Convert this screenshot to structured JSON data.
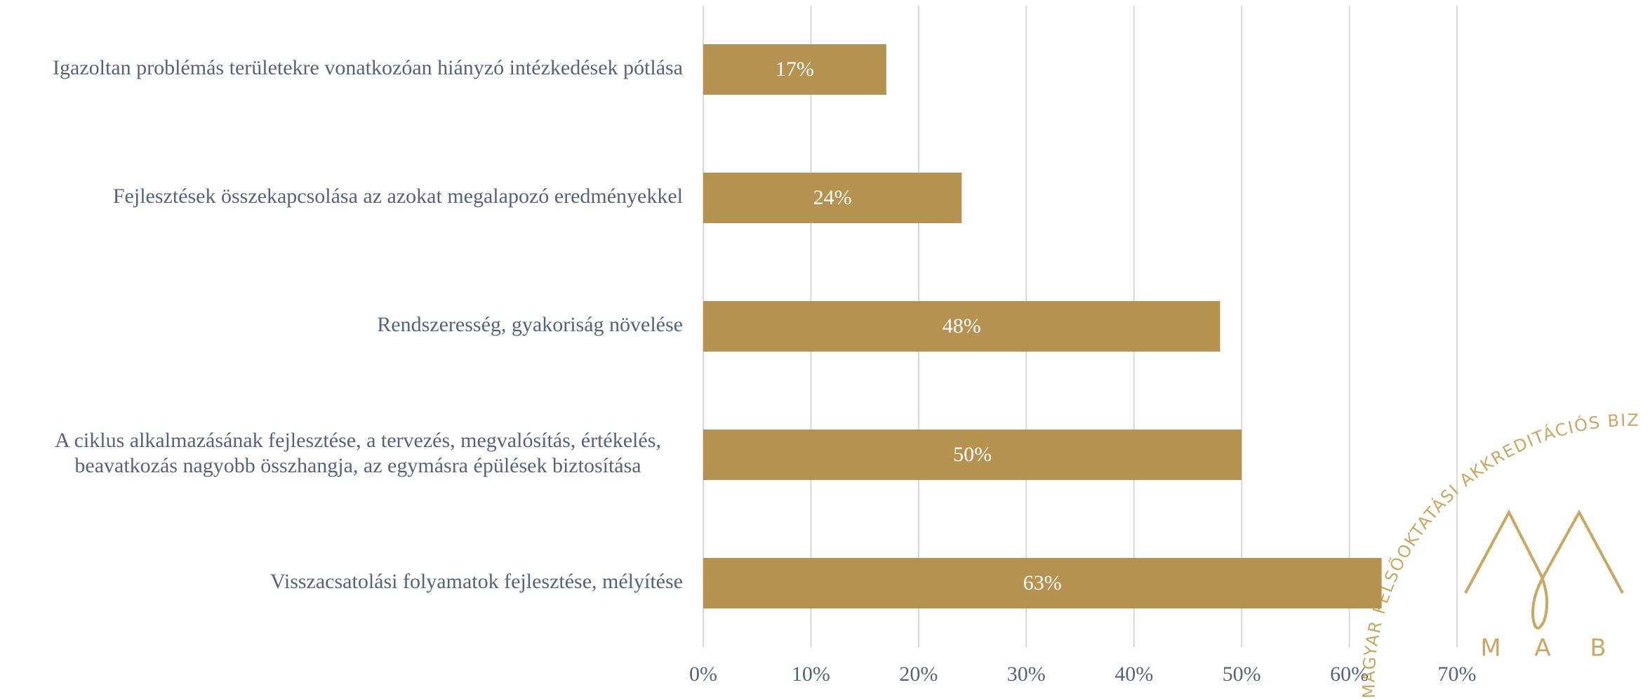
{
  "chart_data": {
    "type": "bar",
    "orientation": "horizontal",
    "categories": [
      "Igazoltan problémás területekre vonatkozóan hiányzó intézkedések pótlása",
      "Fejlesztések összekapcsolása az azokat megalapozó eredményekkel",
      "Rendszeresség, gyakoriság növelése",
      "A ciklus alkalmazásának fejlesztése, a tervezés, megvalósítás, értékelés,\nbeavatkozás nagyobb összhangja, az egymásra épülések biztosítása",
      "Visszacsatolási folyamatok fejlesztése, mélyítése"
    ],
    "values": [
      17,
      24,
      48,
      50,
      63
    ],
    "value_labels": [
      "17%",
      "24%",
      "48%",
      "50%",
      "63%"
    ],
    "color": "#b5924f",
    "xlim": [
      0,
      70
    ],
    "xticks": [
      {
        "value": 0,
        "label": "0%"
      },
      {
        "value": 10,
        "label": "10%"
      },
      {
        "value": 20,
        "label": "20%"
      },
      {
        "value": 30,
        "label": "30%"
      },
      {
        "value": 40,
        "label": "40%"
      },
      {
        "value": 50,
        "label": "50%"
      },
      {
        "value": 60,
        "label": "60%"
      },
      {
        "value": 70,
        "label": "70%"
      }
    ],
    "grid": true
  },
  "logo": {
    "arc_text": "MAGYAR FELSŐOKTATÁSI AKKREDITÁCIÓS BIZOTTSÁG",
    "letters": [
      "M",
      "A",
      "B"
    ]
  }
}
